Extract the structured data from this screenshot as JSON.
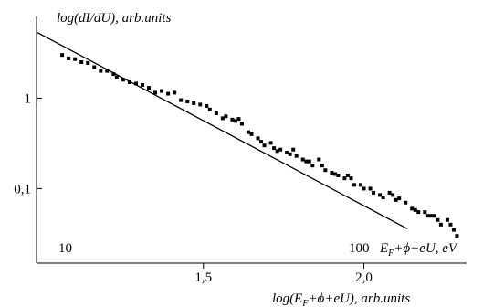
{
  "chart_data": {
    "type": "scatter",
    "title": "",
    "ylabel": "log(dI/dU), arb.units",
    "xlabel_top": "E_F+ϕ+eU, eV",
    "xlabel_bottom": "log(E_F+ϕ+eU), arb.units",
    "x_scale": "log-log",
    "x_top_ticks": [
      "10",
      "100"
    ],
    "x_bottom_ticks": [
      {
        "value": 1.5,
        "label": "1,5"
      },
      {
        "value": 2.0,
        "label": "2,0"
      }
    ],
    "y_ticks": [
      {
        "value": 1,
        "label": "1"
      },
      {
        "value": 0.1,
        "label": "0,1"
      }
    ],
    "xlim_log": [
      0.98,
      2.32
    ],
    "ylim": [
      0.015,
      8
    ],
    "fit_line": {
      "x_log": [
        0.983,
        2.135
      ],
      "y": [
        5.3,
        0.036
      ]
    },
    "points": [
      [
        1.06,
        3.0
      ],
      [
        1.08,
        2.75
      ],
      [
        1.1,
        2.7
      ],
      [
        1.12,
        2.5
      ],
      [
        1.14,
        2.45
      ],
      [
        1.16,
        2.2
      ],
      [
        1.18,
        2.0
      ],
      [
        1.2,
        2.0
      ],
      [
        1.22,
        1.85
      ],
      [
        1.23,
        1.7
      ],
      [
        1.25,
        1.6
      ],
      [
        1.27,
        1.5
      ],
      [
        1.29,
        1.45
      ],
      [
        1.31,
        1.4
      ],
      [
        1.33,
        1.3
      ],
      [
        1.35,
        1.15
      ],
      [
        1.37,
        1.2
      ],
      [
        1.39,
        1.12
      ],
      [
        1.41,
        1.15
      ],
      [
        1.43,
        0.95
      ],
      [
        1.45,
        0.92
      ],
      [
        1.47,
        0.88
      ],
      [
        1.49,
        0.85
      ],
      [
        1.51,
        0.82
      ],
      [
        1.52,
        0.75
      ],
      [
        1.54,
        0.68
      ],
      [
        1.56,
        0.6
      ],
      [
        1.57,
        0.63
      ],
      [
        1.59,
        0.58
      ],
      [
        1.6,
        0.56
      ],
      [
        1.61,
        0.59
      ],
      [
        1.62,
        0.52
      ],
      [
        1.64,
        0.42
      ],
      [
        1.65,
        0.4
      ],
      [
        1.67,
        0.36
      ],
      [
        1.68,
        0.33
      ],
      [
        1.69,
        0.3
      ],
      [
        1.71,
        0.32
      ],
      [
        1.72,
        0.28
      ],
      [
        1.73,
        0.26
      ],
      [
        1.74,
        0.27
      ],
      [
        1.76,
        0.25
      ],
      [
        1.77,
        0.24
      ],
      [
        1.78,
        0.27
      ],
      [
        1.79,
        0.23
      ],
      [
        1.81,
        0.21
      ],
      [
        1.82,
        0.2
      ],
      [
        1.83,
        0.2
      ],
      [
        1.84,
        0.18
      ],
      [
        1.86,
        0.21
      ],
      [
        1.87,
        0.18
      ],
      [
        1.88,
        0.16
      ],
      [
        1.9,
        0.15
      ],
      [
        1.91,
        0.145
      ],
      [
        1.92,
        0.14
      ],
      [
        1.94,
        0.13
      ],
      [
        1.95,
        0.14
      ],
      [
        1.96,
        0.13
      ],
      [
        1.97,
        0.11
      ],
      [
        1.99,
        0.11
      ],
      [
        2.0,
        0.1
      ],
      [
        2.02,
        0.1
      ],
      [
        2.03,
        0.09
      ],
      [
        2.05,
        0.085
      ],
      [
        2.06,
        0.08
      ],
      [
        2.08,
        0.09
      ],
      [
        2.09,
        0.085
      ],
      [
        2.1,
        0.075
      ],
      [
        2.11,
        0.078
      ],
      [
        2.13,
        0.07
      ],
      [
        2.15,
        0.06
      ],
      [
        2.16,
        0.058
      ],
      [
        2.17,
        0.055
      ],
      [
        2.19,
        0.055
      ],
      [
        2.2,
        0.05
      ],
      [
        2.21,
        0.05
      ],
      [
        2.22,
        0.05
      ],
      [
        2.23,
        0.045
      ],
      [
        2.24,
        0.04
      ],
      [
        2.26,
        0.045
      ],
      [
        2.27,
        0.04
      ],
      [
        2.28,
        0.035
      ],
      [
        2.29,
        0.03
      ]
    ]
  }
}
